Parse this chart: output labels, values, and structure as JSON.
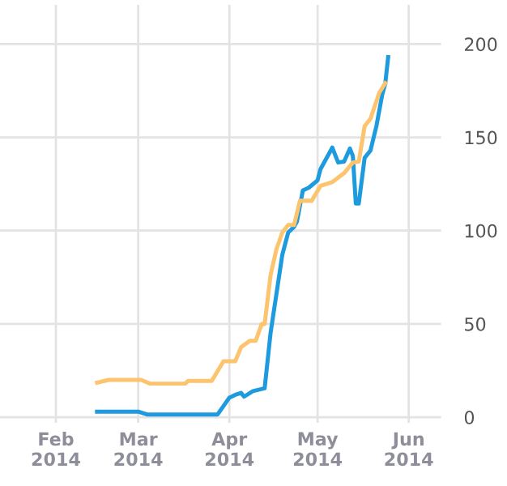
{
  "chart_data": {
    "type": "line",
    "xlim": [
      "2014-01-13",
      "2014-06-12"
    ],
    "xticks": [
      {
        "value": "2014-02-01",
        "label": "Feb\n2014"
      },
      {
        "value": "2014-03-01",
        "label": "Mar\n2014"
      },
      {
        "value": "2014-04-01",
        "label": "Apr\n2014"
      },
      {
        "value": "2014-05-01",
        "label": "May\n2014"
      },
      {
        "value": "2014-06-01",
        "label": "Jun\n2014"
      }
    ],
    "ylim": [
      -3,
      221
    ],
    "yticks": [
      0,
      50,
      100,
      150,
      200
    ],
    "grid": true,
    "marker": "none",
    "line_style": "solid",
    "series": [
      {
        "color": "#1e9bde",
        "x": [
          "2014-02-15",
          "2014-03-01",
          "2014-03-04",
          "2014-03-28",
          "2014-04-01",
          "2014-04-03",
          "2014-04-05",
          "2014-04-06",
          "2014-04-09",
          "2014-04-13",
          "2014-04-15",
          "2014-04-19",
          "2014-04-21",
          "2014-04-23",
          "2014-04-24",
          "2014-04-26",
          "2014-04-28",
          "2014-05-01",
          "2014-05-02",
          "2014-05-06",
          "2014-05-08",
          "2014-05-10",
          "2014-05-12",
          "2014-05-13",
          "2014-05-14",
          "2014-05-15",
          "2014-05-17",
          "2014-05-19",
          "2014-05-21",
          "2014-05-23",
          "2014-05-24",
          "2014-05-25"
        ],
        "values": [
          3,
          3,
          1.5,
          1.5,
          10.5,
          12,
          13,
          11,
          14,
          15.5,
          45,
          87,
          99,
          102,
          105,
          121.6,
          123,
          127,
          133,
          144.5,
          136.5,
          137,
          144,
          140,
          114.5,
          114.5,
          139,
          143,
          156,
          173,
          178.6,
          193
        ]
      },
      {
        "color": "#fcc46e",
        "x": [
          "2014-02-15",
          "2014-02-19",
          "2014-03-02",
          "2014-03-05",
          "2014-03-17",
          "2014-03-18",
          "2014-03-26",
          "2014-03-30",
          "2014-04-03",
          "2014-04-05",
          "2014-04-08",
          "2014-04-10",
          "2014-04-12",
          "2014-04-13",
          "2014-04-15",
          "2014-04-17",
          "2014-04-19",
          "2014-04-21",
          "2014-04-23",
          "2014-04-25",
          "2014-04-29",
          "2014-05-02",
          "2014-05-06",
          "2014-05-10",
          "2014-05-13",
          "2014-05-15",
          "2014-05-17",
          "2014-05-19",
          "2014-05-22",
          "2014-05-24"
        ],
        "values": [
          18.5,
          20,
          20,
          18,
          18,
          19.5,
          19.5,
          30,
          30,
          37.6,
          41,
          41,
          50,
          50,
          76,
          90,
          99,
          103,
          103,
          116,
          116,
          124,
          126,
          130.8,
          136.5,
          137,
          156,
          160,
          174,
          179
        ]
      }
    ]
  }
}
